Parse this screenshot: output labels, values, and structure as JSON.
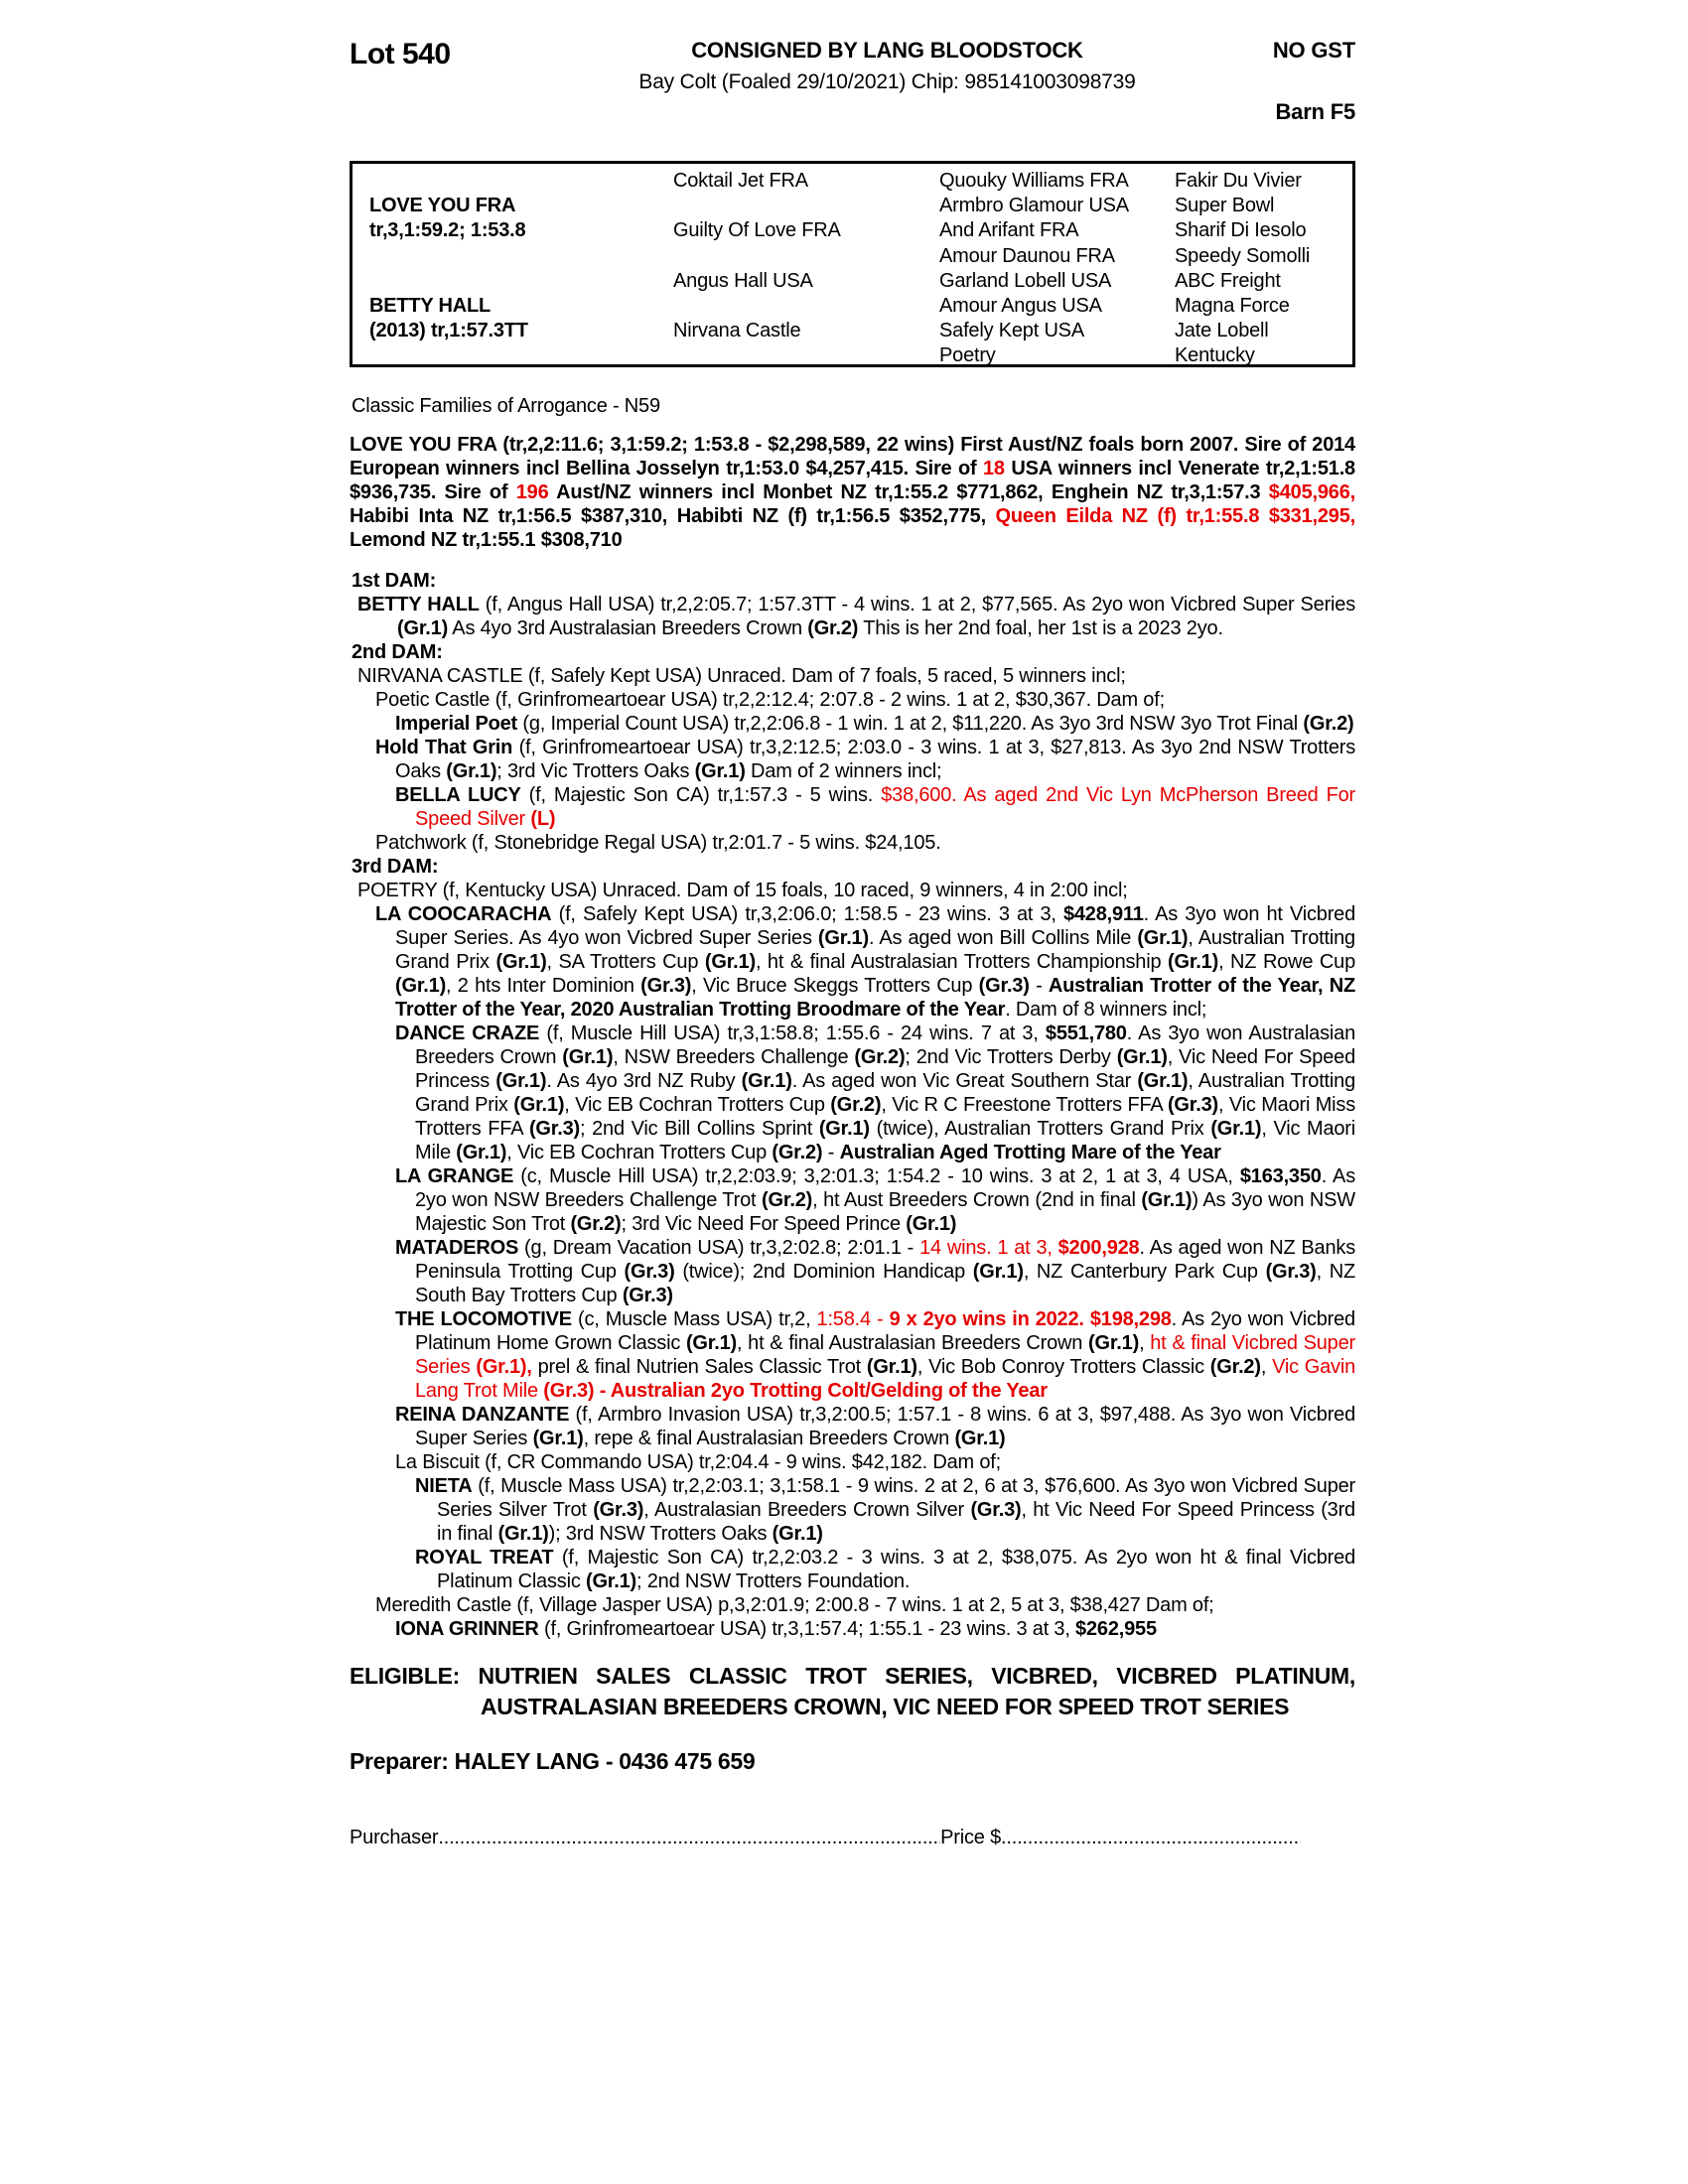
{
  "colors": {
    "accent_red": "#e60000",
    "text": "#000000",
    "paper": "#ffffff"
  },
  "header": {
    "lot": "Lot 540",
    "consigned": "CONSIGNED BY LANG BLOODSTOCK",
    "foaling": "Bay Colt (Foaled 29/10/2021) Chip: 985141003098739",
    "gst": "NO GST",
    "barn": "Barn F5"
  },
  "pedigree": {
    "cells": [
      {
        "c": 1,
        "r": 2,
        "t": "LOVE YOU FRA",
        "b": 1
      },
      {
        "c": 1,
        "r": 3,
        "t": "tr,3,1:59.2; 1:53.8",
        "b": 1
      },
      {
        "c": 1,
        "r": 6,
        "t": "BETTY HALL",
        "b": 1
      },
      {
        "c": 1,
        "r": 7,
        "t": "(2013) tr,1:57.3TT",
        "b": 1
      },
      {
        "c": 2,
        "r": 1,
        "t": "Coktail Jet FRA"
      },
      {
        "c": 2,
        "r": 3,
        "t": "Guilty Of Love FRA"
      },
      {
        "c": 2,
        "r": 5,
        "t": "Angus Hall USA"
      },
      {
        "c": 2,
        "r": 7,
        "t": "Nirvana Castle"
      },
      {
        "c": 3,
        "r": 1,
        "t": "Quouky Williams FRA"
      },
      {
        "c": 3,
        "r": 2,
        "t": "Armbro Glamour USA"
      },
      {
        "c": 3,
        "r": 3,
        "t": "And Arifant FRA"
      },
      {
        "c": 3,
        "r": 4,
        "t": "Amour Daunou FRA"
      },
      {
        "c": 3,
        "r": 5,
        "t": "Garland Lobell USA"
      },
      {
        "c": 3,
        "r": 6,
        "t": "Amour Angus USA"
      },
      {
        "c": 3,
        "r": 7,
        "t": "Safely Kept USA"
      },
      {
        "c": 3,
        "r": 8,
        "t": "Poetry"
      },
      {
        "c": 4,
        "r": 1,
        "t": "Fakir Du Vivier"
      },
      {
        "c": 4,
        "r": 2,
        "t": "Super Bowl"
      },
      {
        "c": 4,
        "r": 3,
        "t": "Sharif Di Iesolo"
      },
      {
        "c": 4,
        "r": 4,
        "t": "Speedy Somolli"
      },
      {
        "c": 4,
        "r": 5,
        "t": "ABC Freight"
      },
      {
        "c": 4,
        "r": 6,
        "t": "Magna Force"
      },
      {
        "c": 4,
        "r": 7,
        "t": "Jate Lobell"
      },
      {
        "c": 4,
        "r": 8,
        "t": "Kentucky"
      }
    ]
  },
  "body": {
    "paragraphs": [
      {
        "k": "note",
        "n": "family-note",
        "runs": [
          {
            "t": "Classic Families of Arrogance - N59"
          }
        ]
      },
      {
        "k": "sire",
        "n": "sire-summary",
        "runs": [
          {
            "t": "LOVE YOU FRA (tr,2,2:11.6; 3,1:59.2; 1:53.8 - $2,298,589, 22 wins) First Aust/NZ foals born 2007. Sire of 2014 European winners incl Bellina Josselyn tr,1:53.0 $4,257,415. Sire of ",
            "b": 1
          },
          {
            "t": "18",
            "b": 1,
            "r": 1
          },
          {
            "t": " USA winners incl Venerate tr,2,1:51.8 $936,735. Sire of ",
            "b": 1
          },
          {
            "t": "196",
            "b": 1,
            "r": 1
          },
          {
            "t": " Aust/NZ winners incl Monbet NZ tr,1:55.2 $771,862, Enghein NZ tr,3,1:57.3 ",
            "b": 1
          },
          {
            "t": "$405,966,",
            "b": 1,
            "r": 1
          },
          {
            "t": " Habibi Inta NZ tr,1:56.5 $387,310, Habibti NZ (f) tr,1:56.5 $352,775, ",
            "b": 1
          },
          {
            "t": "Queen Eilda NZ (f) tr,1:55.8 $331,295,",
            "b": 1,
            "r": 1
          },
          {
            "t": " Lemond NZ tr,1:55.1 $308,710",
            "b": 1
          }
        ]
      },
      {
        "k": "damhdr",
        "n": "dam1-header",
        "runs": [
          {
            "t": "1st DAM:",
            "b": 1
          }
        ]
      },
      {
        "k": "entry",
        "lvl": 0,
        "hang": 1,
        "n": "entry-betty-hall",
        "runs": [
          {
            "t": "BETTY HALL",
            "b": 1
          },
          {
            "t": " (f, Angus Hall USA) tr,2,2:05.7; 1:57.3TT - 4 wins. 1 at 2, $77,565. As 2yo won Vicbred Super Series "
          },
          {
            "t": "(Gr.1)",
            "b": 1
          },
          {
            "t": " As 4yo 3rd Australasian Breeders Crown "
          },
          {
            "t": "(Gr.2)",
            "b": 1
          },
          {
            "t": " This is her 2nd foal, her 1st is a 2023 2yo."
          }
        ]
      },
      {
        "k": "damhdr",
        "n": "dam2-header",
        "runs": [
          {
            "t": "2nd DAM:",
            "b": 1
          }
        ]
      },
      {
        "k": "entry",
        "lvl": 0,
        "n": "entry-nirvana-castle",
        "runs": [
          {
            "t": "NIRVANA CASTLE (f, Safely Kept USA) Unraced. Dam of 7 foals, 5 raced, 5 winners incl;"
          }
        ]
      },
      {
        "k": "entry",
        "lvl": 1,
        "hang": 1,
        "n": "entry-poetic-castle",
        "runs": [
          {
            "t": "Poetic Castle (f, Grinfromeartoear USA) tr,2,2:12.4; 2:07.8 - 2 wins. 1 at 2, $30,367. Dam of;"
          }
        ]
      },
      {
        "k": "entry",
        "lvl": 2,
        "hang": 1,
        "n": "entry-imperial-poet",
        "runs": [
          {
            "t": "Imperial Poet",
            "b": 1
          },
          {
            "t": " (g, Imperial Count USA) tr,2,2:06.8 - 1 win. 1 at 2, $11,220. As 3yo 3rd NSW 3yo Trot Final "
          },
          {
            "t": "(Gr.2)",
            "b": 1
          }
        ]
      },
      {
        "k": "entry",
        "lvl": 1,
        "hang": 1,
        "n": "entry-hold-that-grin",
        "runs": [
          {
            "t": "Hold That Grin",
            "b": 1
          },
          {
            "t": " (f, Grinfromeartoear USA) tr,3,2:12.5; 2:03.0 - 3 wins. 1 at 3, $27,813. As 3yo 2nd NSW Trotters Oaks "
          },
          {
            "t": "(Gr.1)",
            "b": 1
          },
          {
            "t": "; 3rd Vic Trotters Oaks "
          },
          {
            "t": "(Gr.1)",
            "b": 1
          },
          {
            "t": " Dam of 2 winners incl;"
          }
        ]
      },
      {
        "k": "entry",
        "lvl": 2,
        "hang": 1,
        "n": "entry-bella-lucy",
        "runs": [
          {
            "t": "BELLA LUCY",
            "b": 1
          },
          {
            "t": " (f, Majestic Son CA) tr,1:57.3 - 5 wins. "
          },
          {
            "t": "$38,600. As aged 2nd Vic Lyn McPherson Breed For Speed Silver ",
            "r": 1
          },
          {
            "t": "(L)",
            "b": 1,
            "r": 1
          }
        ]
      },
      {
        "k": "entry",
        "lvl": 1,
        "hang": 1,
        "n": "entry-patchwork",
        "runs": [
          {
            "t": "Patchwork (f, Stonebridge Regal USA) tr,2:01.7 - 5 wins. $24,105."
          }
        ]
      },
      {
        "k": "damhdr",
        "n": "dam3-header",
        "runs": [
          {
            "t": "3rd DAM:",
            "b": 1
          }
        ]
      },
      {
        "k": "entry",
        "lvl": 0,
        "n": "entry-poetry",
        "runs": [
          {
            "t": "POETRY (f, Kentucky USA) Unraced. Dam of 15 foals, 10 raced, 9 winners, 4 in 2:00 incl;"
          }
        ]
      },
      {
        "k": "entry",
        "lvl": 1,
        "hang": 1,
        "n": "entry-la-coocaracha",
        "runs": [
          {
            "t": "LA COOCARACHA",
            "b": 1
          },
          {
            "t": " (f, Safely Kept USA) tr,3,2:06.0; 1:58.5 - 23 wins. 3 at 3, "
          },
          {
            "t": "$428,911",
            "b": 1
          },
          {
            "t": ". As 3yo won ht Vicbred Super Series. As 4yo won Vicbred Super Series "
          },
          {
            "t": "(Gr.1)",
            "b": 1
          },
          {
            "t": ". As aged won Bill Collins Mile "
          },
          {
            "t": "(Gr.1)",
            "b": 1
          },
          {
            "t": ", Australian Trotting Grand Prix "
          },
          {
            "t": "(Gr.1)",
            "b": 1
          },
          {
            "t": ", SA Trotters Cup "
          },
          {
            "t": "(Gr.1)",
            "b": 1
          },
          {
            "t": ", ht & final Australasian Trotters Championship "
          },
          {
            "t": "(Gr.1)",
            "b": 1
          },
          {
            "t": ", NZ Rowe Cup "
          },
          {
            "t": "(Gr.1)",
            "b": 1
          },
          {
            "t": ", 2 hts Inter Dominion "
          },
          {
            "t": "(Gr.3)",
            "b": 1
          },
          {
            "t": ", Vic Bruce Skeggs Trotters Cup "
          },
          {
            "t": "(Gr.3)",
            "b": 1
          },
          {
            "t": " - "
          },
          {
            "t": "Australian Trotter of the Year, NZ Trotter of the Year, 2020 Australian Trotting Broodmare of the Year",
            "b": 1
          },
          {
            "t": ". Dam of 8 winners incl;"
          }
        ]
      },
      {
        "k": "entry",
        "lvl": 2,
        "hang": 1,
        "n": "entry-dance-craze",
        "runs": [
          {
            "t": "DANCE CRAZE",
            "b": 1
          },
          {
            "t": " (f, Muscle Hill USA) tr,3,1:58.8; 1:55.6 - 24 wins. 7 at 3, "
          },
          {
            "t": "$551,780",
            "b": 1
          },
          {
            "t": ". As 3yo won Australasian Breeders Crown "
          },
          {
            "t": "(Gr.1)",
            "b": 1
          },
          {
            "t": ", NSW Breeders Challenge "
          },
          {
            "t": "(Gr.2)",
            "b": 1
          },
          {
            "t": "; 2nd Vic Trotters Derby "
          },
          {
            "t": "(Gr.1)",
            "b": 1
          },
          {
            "t": ", Vic Need For Speed Princess "
          },
          {
            "t": "(Gr.1)",
            "b": 1
          },
          {
            "t": ". As 4yo 3rd NZ Ruby "
          },
          {
            "t": "(Gr.1)",
            "b": 1
          },
          {
            "t": ". As aged won Vic Great Southern Star "
          },
          {
            "t": "(Gr.1)",
            "b": 1
          },
          {
            "t": ", Australian Trotting Grand Prix "
          },
          {
            "t": "(Gr.1)",
            "b": 1
          },
          {
            "t": ", Vic EB Cochran Trotters Cup "
          },
          {
            "t": "(Gr.2)",
            "b": 1
          },
          {
            "t": ", Vic R C Freestone Trotters FFA "
          },
          {
            "t": "(Gr.3)",
            "b": 1
          },
          {
            "t": ", Vic Maori Miss Trotters FFA "
          },
          {
            "t": "(Gr.3)",
            "b": 1
          },
          {
            "t": "; 2nd Vic Bill Collins Sprint "
          },
          {
            "t": "(Gr.1)",
            "b": 1
          },
          {
            "t": " (twice), Australian Trotters Grand Prix "
          },
          {
            "t": "(Gr.1)",
            "b": 1
          },
          {
            "t": ", Vic Maori Mile "
          },
          {
            "t": "(Gr.1)",
            "b": 1
          },
          {
            "t": ", Vic EB Cochran Trotters Cup "
          },
          {
            "t": "(Gr.2)",
            "b": 1
          },
          {
            "t": " - "
          },
          {
            "t": "Australian Aged Trotting Mare of the Year",
            "b": 1
          }
        ]
      },
      {
        "k": "entry",
        "lvl": 2,
        "hang": 1,
        "n": "entry-la-grange",
        "runs": [
          {
            "t": "LA GRANGE",
            "b": 1
          },
          {
            "t": " (c, Muscle Hill USA) tr,2,2:03.9; 3,2:01.3; 1:54.2 - 10 wins. 3 at 2, 1 at 3, 4 USA, "
          },
          {
            "t": "$163,350",
            "b": 1
          },
          {
            "t": ". As 2yo won NSW Breeders Challenge Trot "
          },
          {
            "t": "(Gr.2)",
            "b": 1
          },
          {
            "t": ", ht Aust Breeders Crown (2nd in final "
          },
          {
            "t": "(Gr.1)",
            "b": 1
          },
          {
            "t": ") As 3yo won NSW Majestic Son Trot "
          },
          {
            "t": "(Gr.2)",
            "b": 1
          },
          {
            "t": "; 3rd Vic Need For Speed Prince "
          },
          {
            "t": "(Gr.1)",
            "b": 1
          }
        ]
      },
      {
        "k": "entry",
        "lvl": 2,
        "hang": 1,
        "n": "entry-mataderos",
        "runs": [
          {
            "t": "MATADEROS",
            "b": 1
          },
          {
            "t": " (g, Dream Vacation USA) tr,3,2:02.8; 2:01.1 - "
          },
          {
            "t": "14 wins. 1 at 3, ",
            "r": 1
          },
          {
            "t": "$200,928",
            "b": 1,
            "r": 1
          },
          {
            "t": ". As aged won NZ Banks Peninsula Trotting Cup "
          },
          {
            "t": "(Gr.3)",
            "b": 1
          },
          {
            "t": " (twice); 2nd Dominion Handicap "
          },
          {
            "t": "(Gr.1)",
            "b": 1
          },
          {
            "t": ", NZ Canterbury Park Cup "
          },
          {
            "t": "(Gr.3)",
            "b": 1
          },
          {
            "t": ", NZ South Bay Trotters Cup "
          },
          {
            "t": "(Gr.3)",
            "b": 1
          }
        ]
      },
      {
        "k": "entry",
        "lvl": 2,
        "hang": 1,
        "n": "entry-the-locomotive",
        "runs": [
          {
            "t": "THE LOCOMOTIVE",
            "b": 1
          },
          {
            "t": " (c, Muscle Mass USA) tr,2, "
          },
          {
            "t": "1:58.4 - ",
            "r": 1
          },
          {
            "t": "9 x 2yo wins in 2022. $198,298",
            "b": 1,
            "r": 1
          },
          {
            "t": ". As 2yo won Vicbred Platinum Home Grown Classic "
          },
          {
            "t": "(Gr.1)",
            "b": 1
          },
          {
            "t": ", ht & final Australasian Breeders Crown "
          },
          {
            "t": "(Gr.1)",
            "b": 1
          },
          {
            "t": ", "
          },
          {
            "t": "ht & final Vicbred Super Series ",
            "r": 1
          },
          {
            "t": "(Gr.1),",
            "b": 1,
            "r": 1
          },
          {
            "t": " prel & final Nutrien Sales Classic Trot "
          },
          {
            "t": "(Gr.1)",
            "b": 1
          },
          {
            "t": ", Vic Bob Conroy Trotters Classic "
          },
          {
            "t": "(Gr.2)",
            "b": 1
          },
          {
            "t": ", "
          },
          {
            "t": "Vic Gavin Lang Trot Mile ",
            "r": 1
          },
          {
            "t": "(Gr.3) - Australian 2yo Trotting Colt/Gelding of the Year",
            "b": 1,
            "r": 1
          }
        ]
      },
      {
        "k": "entry",
        "lvl": 2,
        "hang": 1,
        "n": "entry-reina-danzante",
        "runs": [
          {
            "t": "REINA DANZANTE",
            "b": 1
          },
          {
            "t": " (f, Armbro Invasion USA) tr,3,2:00.5; 1:57.1 - 8 wins. 6 at 3, $97,488. As 3yo won Vicbred Super Series "
          },
          {
            "t": "(Gr.1)",
            "b": 1
          },
          {
            "t": ", repe & final Australasian Breeders Crown "
          },
          {
            "t": "(Gr.1)",
            "b": 1
          }
        ]
      },
      {
        "k": "entry",
        "lvl": 2,
        "hang": 1,
        "n": "entry-la-biscuit",
        "runs": [
          {
            "t": "La Biscuit (f, CR Commando USA) tr,2:04.4 - 9 wins. $42,182. Dam of;"
          }
        ]
      },
      {
        "k": "entry",
        "lvl": 3,
        "hang": 1,
        "n": "entry-nieta",
        "runs": [
          {
            "t": "NIETA",
            "b": 1
          },
          {
            "t": " (f, Muscle Mass USA) tr,2,2:03.1; 3,1:58.1 - 9 wins. 2 at 2, 6 at 3, $76,600. As 3yo won Vicbred Super Series Silver Trot "
          },
          {
            "t": "(Gr.3)",
            "b": 1
          },
          {
            "t": ", Australasian Breeders Crown Silver "
          },
          {
            "t": "(Gr.3)",
            "b": 1
          },
          {
            "t": ", ht Vic Need For Speed Princess (3rd in final "
          },
          {
            "t": "(Gr.1)",
            "b": 1
          },
          {
            "t": "); 3rd NSW Trotters Oaks "
          },
          {
            "t": "(Gr.1)",
            "b": 1
          }
        ]
      },
      {
        "k": "entry",
        "lvl": 3,
        "hang": 1,
        "n": "entry-royal-treat",
        "runs": [
          {
            "t": "ROYAL TREAT",
            "b": 1
          },
          {
            "t": " (f, Majestic Son CA) tr,2,2:03.2 - 3 wins. 3 at 2, $38,075. As 2yo won ht & final Vicbred Platinum Classic "
          },
          {
            "t": "(Gr.1)",
            "b": 1
          },
          {
            "t": "; 2nd NSW Trotters Foundation."
          }
        ]
      },
      {
        "k": "entry",
        "lvl": 1,
        "hang": 1,
        "n": "entry-meredith-castle",
        "runs": [
          {
            "t": "Meredith Castle (f, Village Jasper USA) p,3,2:01.9; 2:00.8 - 7 wins. 1 at 2, 5 at 3, $38,427 Dam of;"
          }
        ]
      },
      {
        "k": "entry",
        "lvl": 2,
        "hang": 1,
        "n": "entry-iona-grinner",
        "runs": [
          {
            "t": "IONA GRINNER",
            "b": 1
          },
          {
            "t": " (f, Grinfromeartoear USA) tr,3,1:57.4; 1:55.1 - 23 wins. 3 at 3, "
          },
          {
            "t": "$262,955",
            "b": 1
          }
        ]
      },
      {
        "k": "elig",
        "n": "eligibility-statement",
        "runs": [
          {
            "t": "ELIGIBLE:  NUTRIEN SALES CLASSIC TROT SERIES, VICBRED, VICBRED PLATINUM, AUSTRALASIAN BREEDERS CROWN, VIC NEED FOR SPEED TROT SERIES",
            "b": 1
          }
        ]
      }
    ]
  },
  "footer": {
    "preparer": "Preparer: HALEY LANG - 0436 475 659",
    "purchaser_label": "Purchaser",
    "purchaser_dots": "........................................................................................................................................................",
    "price_label": "Price $",
    "price_dots": "............................................................................."
  }
}
